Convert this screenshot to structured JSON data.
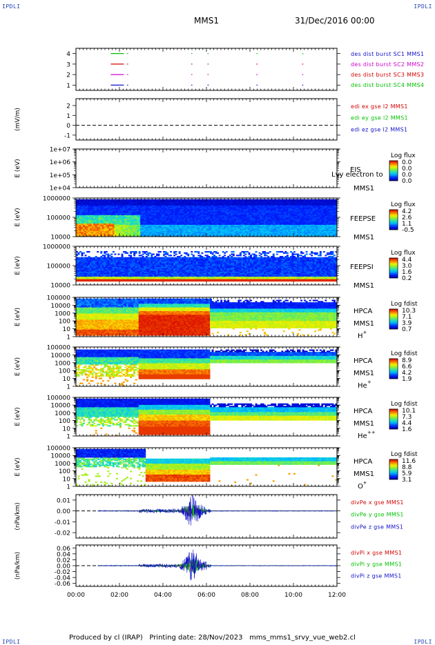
{
  "header": {
    "corner_left": "IPDLI",
    "corner_right": "IPDLI",
    "corner_bottom_left": "IPDLI",
    "corner_bottom_right": "IPDLI",
    "mission": "MMS1",
    "date": "31/Dec/2016 00:00"
  },
  "footer": {
    "produced_by": "Produced by cl (IRAP)",
    "printing_date": "Printing date: 28/Nov/2023",
    "filename": "mms_mms1_srvy_vue_web2.cl"
  },
  "colors": {
    "red": "#d40000",
    "green": "#00c000",
    "blue": "#1010c8",
    "magenta": "#d000d0",
    "dark_blue": "#1a1a8c"
  },
  "chart_data": [
    {
      "type": "line",
      "id": "burst",
      "ylim": [
        0.5,
        4.5
      ],
      "y_ticks": [
        1,
        2,
        3,
        4
      ],
      "y_tick_labels": [
        "1",
        "2",
        "3",
        "4"
      ],
      "legend": [
        {
          "text": "des dist burst SC1 MMS1",
          "color": "#1010c8"
        },
        {
          "text": "des dist burst SC2 MMS2",
          "color": "#d000d0"
        },
        {
          "text": "des dist burst SC3 MMS3",
          "color": "#d40000"
        },
        {
          "text": "des dist burst SC4 MMS4",
          "color": "#00c000"
        }
      ],
      "series": [
        {
          "level": 4,
          "color": "#00c000",
          "intervals": [
            [
              1.6,
              2.2
            ],
            [
              2.35,
              2.4
            ],
            [
              5.3,
              5.35
            ],
            [
              6.05,
              6.1
            ],
            [
              8.3,
              8.35
            ],
            [
              10.4,
              10.45
            ]
          ]
        },
        {
          "level": 3,
          "color": "#d40000",
          "intervals": [
            [
              1.6,
              2.2
            ],
            [
              2.35,
              2.4
            ],
            [
              5.3,
              5.35
            ],
            [
              6.05,
              6.1
            ],
            [
              8.3,
              8.35
            ],
            [
              10.4,
              10.45
            ]
          ]
        },
        {
          "level": 2,
          "color": "#d000d0",
          "intervals": [
            [
              1.6,
              2.2
            ],
            [
              2.35,
              2.4
            ],
            [
              5.3,
              5.35
            ],
            [
              6.05,
              6.1
            ],
            [
              8.3,
              8.35
            ],
            [
              10.4,
              10.45
            ]
          ]
        },
        {
          "level": 1,
          "color": "#1010c8",
          "intervals": [
            [
              1.6,
              2.2
            ],
            [
              2.35,
              2.4
            ],
            [
              5.3,
              5.35
            ],
            [
              6.05,
              6.1
            ],
            [
              8.3,
              8.35
            ],
            [
              10.4,
              10.45
            ]
          ]
        }
      ]
    },
    {
      "type": "line",
      "id": "edi",
      "ylabel": "(mV/m)",
      "ylim": [
        -1.5,
        2.7
      ],
      "y_ticks": [
        -1,
        0,
        1,
        2
      ],
      "y_tick_labels": [
        "-1",
        "0",
        "1",
        "2"
      ],
      "dashed_zero": true,
      "legend": [
        {
          "text": "edi ex gse l2 MMS1",
          "color": "#d40000"
        },
        {
          "text": "edi ey gse l2 MMS1",
          "color": "#00c000"
        },
        {
          "text": "edi ez gse l2 MMS1",
          "color": "#1010c8"
        }
      ]
    },
    {
      "type": "heatmap",
      "id": "eis",
      "ylabel": "E (eV)",
      "log_y": true,
      "ylim": [
        10000,
        10000000
      ],
      "y_ticks": [
        10000,
        100000,
        1000000,
        10000000
      ],
      "y_tick_labels": [
        "1e+04",
        "1e+05",
        "1e+06",
        "1e+07"
      ],
      "instrument": "EIS",
      "overlay_text": "Lvy electron to",
      "sc": "MMS1",
      "cbar_title": "Log flux",
      "cbar_labels": [
        "0.0",
        "0.0",
        "0.0",
        "0.0"
      ],
      "fill": "empty"
    },
    {
      "type": "heatmap",
      "id": "feepse",
      "ylabel": "E (eV)",
      "log_y": true,
      "ylim": [
        10000,
        1000000
      ],
      "y_ticks": [
        10000,
        100000,
        1000000
      ],
      "y_tick_labels": [
        "10000",
        "100000",
        "1000000"
      ],
      "instrument": "FEEPSE",
      "sc": "MMS1",
      "cbar_title": "Log flux",
      "cbar_labels": [
        "4.2",
        "2.6",
        "1.1",
        "-0.5"
      ],
      "fill": "feeps_e"
    },
    {
      "type": "heatmap",
      "id": "feepsi",
      "ylabel": "E (eV)",
      "log_y": true,
      "ylim": [
        10000,
        1000000
      ],
      "y_ticks": [
        10000,
        100000,
        1000000
      ],
      "y_tick_labels": [
        "10000",
        "100000",
        "1000000"
      ],
      "instrument": "FEEPSI",
      "sc": "MMS1",
      "cbar_title": "Log flux",
      "cbar_labels": [
        "4.4",
        "3.0",
        "1.6",
        "0.2"
      ],
      "fill": "feeps_i"
    },
    {
      "type": "heatmap",
      "id": "hpca_h",
      "ylabel": "E (eV)",
      "log_y": true,
      "ylim": [
        1,
        100000
      ],
      "y_ticks": [
        1,
        10,
        100,
        1000,
        10000,
        100000
      ],
      "y_tick_labels": [
        "1",
        "10",
        "100",
        "1000",
        "10000",
        "100000"
      ],
      "instrument": "HPCA",
      "sc": "MMS1",
      "species": "H",
      "species_sup": "+",
      "cbar_title": "Log fdist",
      "cbar_labels": [
        "10.3",
        "7.1",
        "3.9",
        "0.7"
      ],
      "fill": "hpca_h"
    },
    {
      "type": "heatmap",
      "id": "hpca_he",
      "ylabel": "E (eV)",
      "log_y": true,
      "ylim": [
        1,
        100000
      ],
      "y_ticks": [
        1,
        10,
        100,
        1000,
        10000,
        100000
      ],
      "y_tick_labels": [
        "1",
        "10",
        "100",
        "1000",
        "10000",
        "100000"
      ],
      "instrument": "HPCA",
      "sc": "MMS1",
      "species": "He",
      "species_sup": "+",
      "cbar_title": "Log fdist",
      "cbar_labels": [
        "8.9",
        "6.6",
        "4.2",
        "1.9"
      ],
      "fill": "hpca_he"
    },
    {
      "type": "heatmap",
      "id": "hpca_hepp",
      "ylabel": "E (eV)",
      "log_y": true,
      "ylim": [
        1,
        100000
      ],
      "y_ticks": [
        1,
        10,
        100,
        1000,
        10000,
        100000
      ],
      "y_tick_labels": [
        "1",
        "10",
        "100",
        "1000",
        "10000",
        "100000"
      ],
      "instrument": "HPCA",
      "sc": "MMS1",
      "species": "He",
      "species_sup": "++",
      "cbar_title": "Log fdist",
      "cbar_labels": [
        "10.1",
        "7.3",
        "4.4",
        "1.6"
      ],
      "fill": "hpca_hepp"
    },
    {
      "type": "heatmap",
      "id": "hpca_o",
      "ylabel": "E (eV)",
      "log_y": true,
      "ylim": [
        1,
        100000
      ],
      "y_ticks": [
        1,
        10,
        100,
        1000,
        10000,
        100000
      ],
      "y_tick_labels": [
        "1",
        "10",
        "100",
        "1000",
        "10000",
        "100000"
      ],
      "instrument": "HPCA",
      "sc": "MMS1",
      "species": "O",
      "species_sup": "+",
      "cbar_title": "Log fdist",
      "cbar_labels": [
        "11.6",
        "8.8",
        "5.9",
        "3.1"
      ],
      "fill": "hpca_o"
    },
    {
      "type": "line",
      "id": "divpe",
      "ylabel": "(nPa/km)",
      "ylim": [
        -0.025,
        0.015
      ],
      "y_ticks": [
        -0.02,
        -0.01,
        0.0,
        0.01
      ],
      "y_tick_labels": [
        "-0.02",
        "-0.01",
        "0.00",
        "0.01"
      ],
      "dashed_zero": true,
      "noise": "pe",
      "legend": [
        {
          "text": "divPe x gse MMS1",
          "color": "#d40000"
        },
        {
          "text": "divPe y gse MMS1",
          "color": "#00c000"
        },
        {
          "text": "divPe z gse MMS1",
          "color": "#1010c8"
        }
      ]
    },
    {
      "type": "line",
      "id": "divpi",
      "ylabel": "(nPa/km)",
      "ylim": [
        -0.07,
        0.07
      ],
      "y_ticks": [
        -0.06,
        -0.04,
        -0.02,
        0.0,
        0.02,
        0.04,
        0.06
      ],
      "y_tick_labels": [
        "-0.06",
        "-0.04",
        "-0.02",
        "0.00",
        "0.02",
        "0.04",
        "0.06"
      ],
      "dashed_zero": true,
      "noise": "pi",
      "legend": [
        {
          "text": "divPi x gse MMS1",
          "color": "#d40000"
        },
        {
          "text": "divPi y gse MMS1",
          "color": "#00c000"
        },
        {
          "text": "divPi z gse MMS1",
          "color": "#1010c8"
        }
      ]
    }
  ],
  "x_axis": {
    "range_hours": [
      0,
      12
    ],
    "ticks": [
      0,
      2,
      4,
      6,
      8,
      10,
      12
    ],
    "tick_labels": [
      "00:00",
      "02:00",
      "04:00",
      "06:00",
      "08:00",
      "10:00",
      "12:00"
    ]
  }
}
